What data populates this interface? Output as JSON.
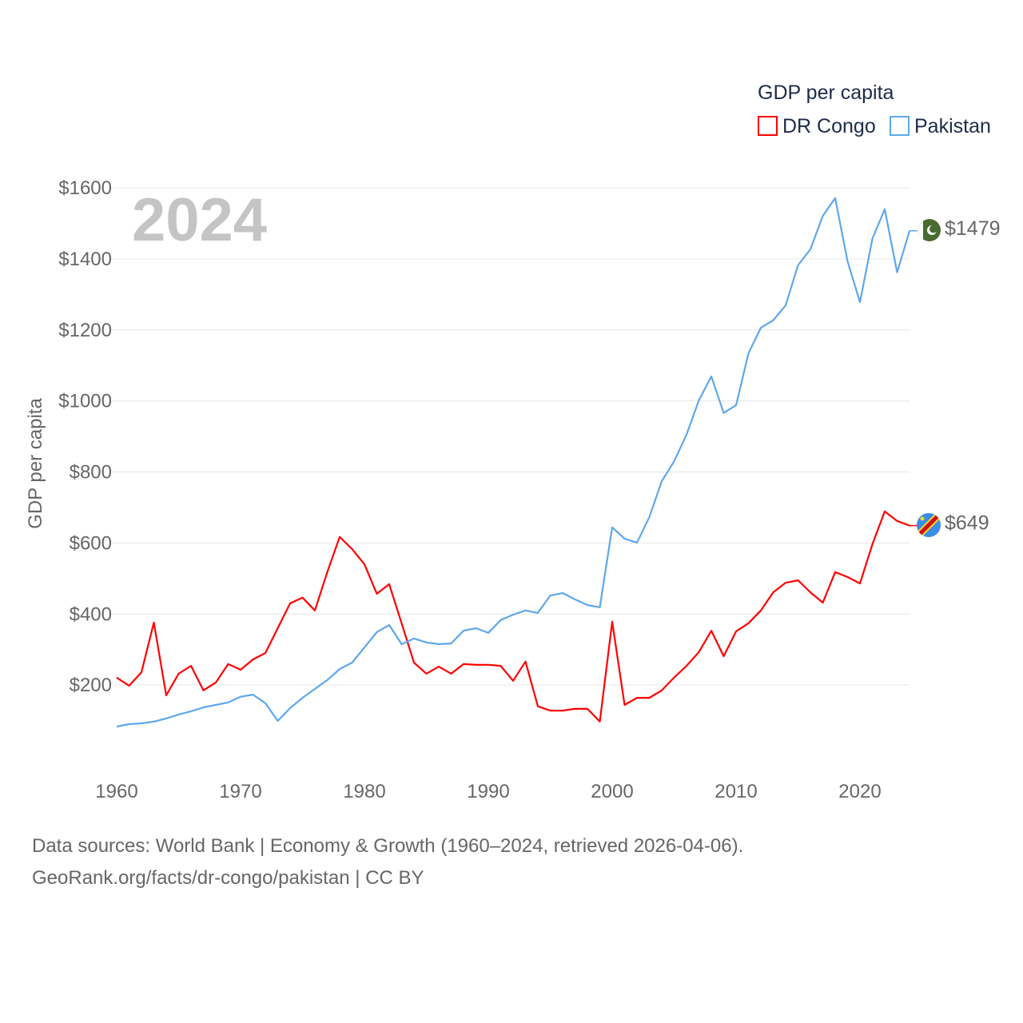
{
  "chart_data": {
    "type": "line",
    "title": "GDP per capita",
    "ylabel": "GDP per capita",
    "xlabel": "",
    "year_label": "2024",
    "xlim": [
      1960,
      2024
    ],
    "ylim": [
      0,
      1600
    ],
    "x_ticks": [
      1960,
      1970,
      1980,
      1990,
      2000,
      2010,
      2020
    ],
    "y_ticks": [
      200,
      400,
      600,
      800,
      1000,
      1200,
      1400,
      1600
    ],
    "y_tick_labels": [
      "$200",
      "$400",
      "$600",
      "$800",
      "$1000",
      "$1200",
      "$1400",
      "$1600"
    ],
    "grid": true,
    "legend_position": "top-right",
    "x": [
      1960,
      1961,
      1962,
      1963,
      1964,
      1965,
      1966,
      1967,
      1968,
      1969,
      1970,
      1971,
      1972,
      1973,
      1974,
      1975,
      1976,
      1977,
      1978,
      1979,
      1980,
      1981,
      1982,
      1983,
      1984,
      1985,
      1986,
      1987,
      1988,
      1989,
      1990,
      1991,
      1992,
      1993,
      1994,
      1995,
      1996,
      1997,
      1998,
      1999,
      2000,
      2001,
      2002,
      2003,
      2004,
      2005,
      2006,
      2007,
      2008,
      2009,
      2010,
      2011,
      2012,
      2013,
      2014,
      2015,
      2016,
      2017,
      2018,
      2019,
      2020,
      2021,
      2022,
      2023,
      2024
    ],
    "series": [
      {
        "name": "DR Congo",
        "color": "#ff0000",
        "end_label": "$649",
        "values": [
          221,
          198,
          236,
          376,
          171,
          232,
          254,
          185,
          207,
          259,
          243,
          272,
          290,
          360,
          430,
          446,
          410,
          518,
          617,
          583,
          540,
          457,
          484,
          374,
          263,
          232,
          252,
          232,
          259,
          257,
          257,
          254,
          212,
          266,
          140,
          128,
          128,
          133,
          133,
          97,
          378,
          144,
          164,
          164,
          185,
          221,
          254,
          293,
          353,
          281,
          351,
          374,
          410,
          461,
          488,
          495,
          461,
          432,
          518,
          504,
          486,
          596,
          689,
          662,
          649
        ]
      },
      {
        "name": "Pakistan",
        "color": "#5ea8ec",
        "end_label": "$1479",
        "values": [
          83,
          90,
          92,
          97,
          106,
          117,
          126,
          137,
          144,
          151,
          167,
          173,
          149,
          99,
          135,
          164,
          189,
          214,
          245,
          263,
          306,
          349,
          369,
          315,
          331,
          320,
          315,
          317,
          353,
          360,
          347,
          383,
          398,
          410,
          403,
          452,
          459,
          441,
          425,
          419,
          644,
          612,
          601,
          673,
          774,
          830,
          905,
          1002,
          1069,
          966,
          988,
          1134,
          1206,
          1227,
          1269,
          1382,
          1427,
          1521,
          1571,
          1393,
          1278,
          1456,
          1540,
          1362,
          1479
        ]
      }
    ]
  },
  "footer": {
    "line1": "Data sources: World Bank | Economy & Growth (1960–2024, retrieved 2026-04-06).",
    "line2": "GeoRank.org/facts/dr-congo/pakistan | CC BY"
  }
}
